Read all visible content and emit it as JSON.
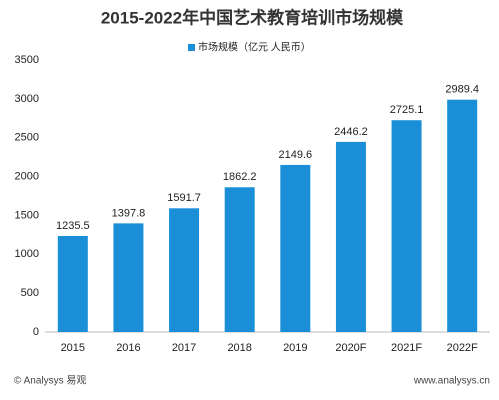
{
  "chart_data": {
    "type": "bar",
    "title": "2015-2022年中国艺术教育培训市场规模",
    "series": [
      {
        "name": "市场规模（亿元 人民币）",
        "color": "#1a8fd8",
        "values": [
          1235.5,
          1397.8,
          1591.7,
          1862.2,
          2149.6,
          2446.2,
          2725.1,
          2989.4
        ]
      }
    ],
    "categories": [
      "2015",
      "2016",
      "2017",
      "2018",
      "2019",
      "2020F",
      "2021F",
      "2022F"
    ],
    "ylim": [
      0,
      3500
    ],
    "yticks": [
      0,
      500,
      1000,
      1500,
      2000,
      2500,
      3000,
      3500
    ],
    "grid": false,
    "source": "© Analysys 易观",
    "website": "www.analysys.cn"
  }
}
